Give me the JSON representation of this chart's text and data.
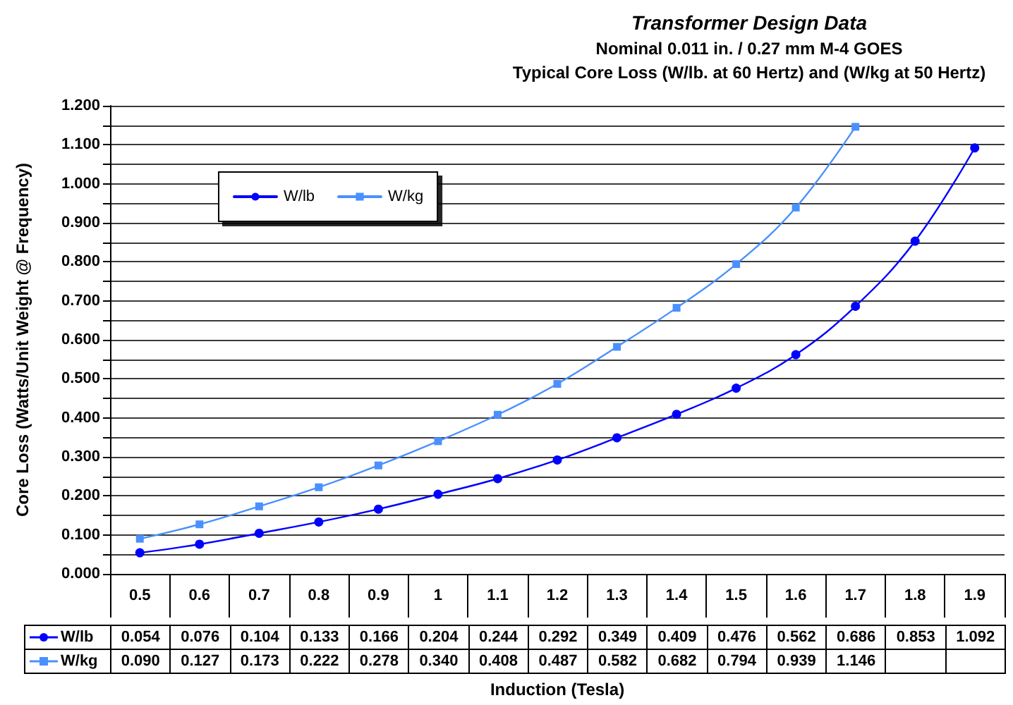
{
  "chart_data": {
    "type": "line",
    "title": "Transformer Design Data",
    "subtitle": "Nominal 0.011 in. / 0.27 mm M-4 GOES\nTypical Core Loss (W/lb. at 60 Hertz) and (W/kg at 50 Hertz)",
    "xlabel": "Induction (Tesla)",
    "ylabel": "Core Loss (Watts/Unit Weight @ Frequency)",
    "categories": [
      "0.5",
      "0.6",
      "0.7",
      "0.8",
      "0.9",
      "1",
      "1.1",
      "1.2",
      "1.3",
      "1.4",
      "1.5",
      "1.6",
      "1.7",
      "1.8",
      "1.9"
    ],
    "series": [
      {
        "name": "W/lb",
        "color": "#0000ff",
        "marker": "circle",
        "values": [
          0.054,
          0.076,
          0.104,
          0.133,
          0.166,
          0.204,
          0.244,
          0.292,
          0.349,
          0.409,
          0.476,
          0.562,
          0.686,
          0.853,
          1.092
        ],
        "value_labels": [
          "0.054",
          "0.076",
          "0.104",
          "0.133",
          "0.166",
          "0.204",
          "0.244",
          "0.292",
          "0.349",
          "0.409",
          "0.476",
          "0.562",
          "0.686",
          "0.853",
          "1.092"
        ]
      },
      {
        "name": "W/kg",
        "color": "#4a90ff",
        "marker": "square",
        "values": [
          0.09,
          0.127,
          0.173,
          0.222,
          0.278,
          0.34,
          0.408,
          0.487,
          0.582,
          0.682,
          0.794,
          0.939,
          1.146,
          null,
          null
        ],
        "value_labels": [
          "0.090",
          "0.127",
          "0.173",
          "0.222",
          "0.278",
          "0.340",
          "0.408",
          "0.487",
          "0.582",
          "0.682",
          "0.794",
          "0.939",
          "1.146",
          null,
          null
        ]
      }
    ],
    "ylim": [
      0,
      1.2
    ],
    "yticks": [
      {
        "value": 0,
        "label": "0.000"
      },
      {
        "value": 0.05,
        "label": null
      },
      {
        "value": 0.1,
        "label": "0.100"
      },
      {
        "value": 0.15,
        "label": null
      },
      {
        "value": 0.2,
        "label": "0.200"
      },
      {
        "value": 0.25,
        "label": null
      },
      {
        "value": 0.3,
        "label": "0.300"
      },
      {
        "value": 0.35,
        "label": null
      },
      {
        "value": 0.4,
        "label": "0.400"
      },
      {
        "value": 0.45,
        "label": null
      },
      {
        "value": 0.5,
        "label": "0.500"
      },
      {
        "value": 0.55,
        "label": null
      },
      {
        "value": 0.6,
        "label": "0.600"
      },
      {
        "value": 0.65,
        "label": null
      },
      {
        "value": 0.7,
        "label": "0.700"
      },
      {
        "value": 0.75,
        "label": null
      },
      {
        "value": 0.8,
        "label": "0.800"
      },
      {
        "value": 0.85,
        "label": null
      },
      {
        "value": 0.9,
        "label": "0.900"
      },
      {
        "value": 0.95,
        "label": null
      },
      {
        "value": 1.0,
        "label": "1.000"
      },
      {
        "value": 1.05,
        "label": null
      },
      {
        "value": 1.1,
        "label": "1.100"
      },
      {
        "value": 1.15,
        "label": null
      },
      {
        "value": 1.2,
        "label": "1.200"
      }
    ],
    "grid": "y",
    "legend": "top left",
    "line_style": "solid"
  }
}
